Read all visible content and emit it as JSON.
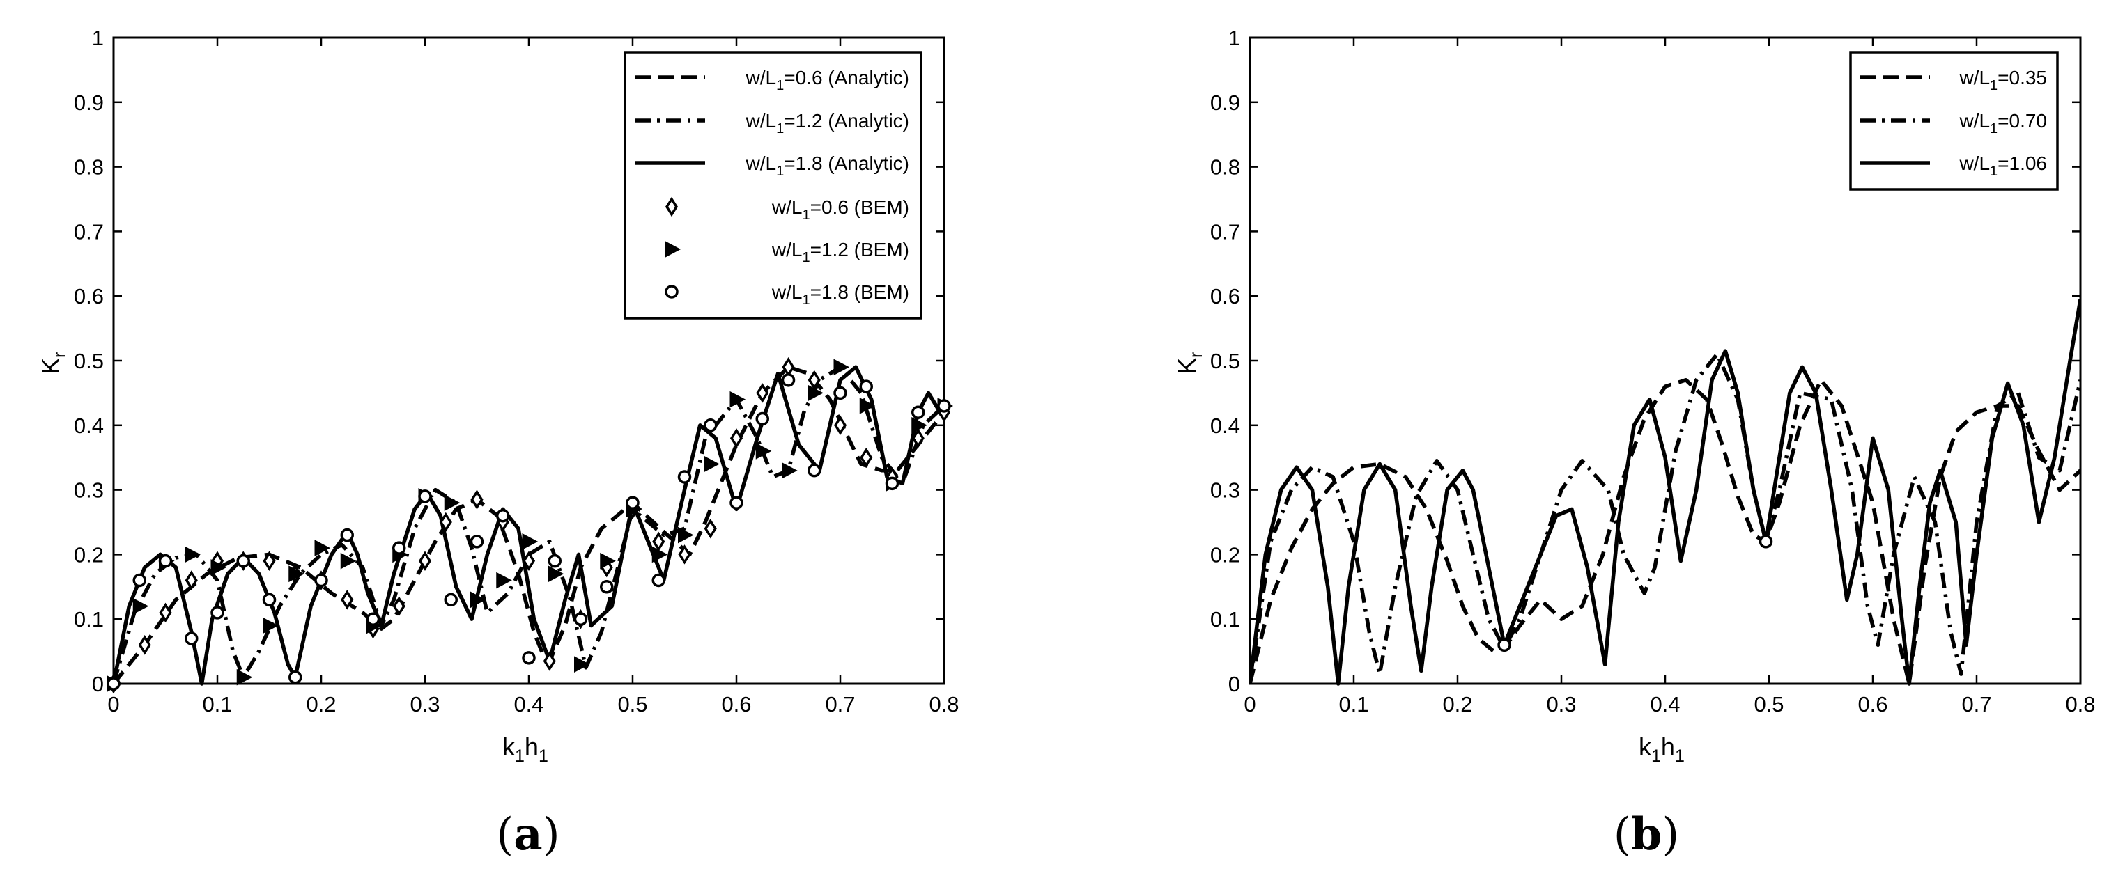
{
  "chart_data": [
    {
      "type": "line",
      "panel_label": "a",
      "xlabel": "k",
      "xlabel_sub1": "1",
      "xlabel_mid": "h",
      "xlabel_sub2": "1",
      "ylabel": "K",
      "ylabel_sub": "r",
      "xlim": [
        0,
        0.8
      ],
      "ylim": [
        0,
        1
      ],
      "xticks": [
        "0",
        "0.1",
        "0.2",
        "0.3",
        "0.4",
        "0.5",
        "0.6",
        "0.7",
        "0.8"
      ],
      "yticks": [
        "0",
        "0.1",
        "0.2",
        "0.3",
        "0.4",
        "0.5",
        "0.6",
        "0.7",
        "0.8",
        "0.9",
        "1"
      ],
      "grid": false,
      "legend_position": "top-right",
      "series": [
        {
          "name": "w/L1=0.6 (Analytic)",
          "label_pre": "w/L",
          "label_sub": "1",
          "label_post": "=0.6 (Analytic)",
          "style": "dashed",
          "x": [
            0,
            0.03,
            0.06,
            0.09,
            0.12,
            0.15,
            0.18,
            0.21,
            0.225,
            0.24,
            0.258,
            0.27,
            0.29,
            0.31,
            0.33,
            0.35,
            0.37,
            0.39,
            0.405,
            0.415,
            0.42,
            0.435,
            0.45,
            0.47,
            0.5,
            0.53,
            0.555,
            0.57,
            0.6,
            0.625,
            0.65,
            0.67,
            0.69,
            0.705,
            0.72,
            0.74,
            0.755,
            0.77,
            0.8
          ],
          "y": [
            0,
            0.06,
            0.13,
            0.17,
            0.195,
            0.2,
            0.18,
            0.14,
            0.125,
            0.11,
            0.085,
            0.1,
            0.16,
            0.22,
            0.27,
            0.285,
            0.26,
            0.17,
            0.08,
            0.04,
            0.035,
            0.09,
            0.18,
            0.24,
            0.28,
            0.235,
            0.2,
            0.25,
            0.37,
            0.45,
            0.49,
            0.48,
            0.44,
            0.39,
            0.34,
            0.33,
            0.33,
            0.36,
            0.42
          ]
        },
        {
          "name": "w/L1=1.2 (Analytic)",
          "label_pre": "w/L",
          "label_sub": "1",
          "label_post": "=1.2 (Analytic)",
          "style": "dashdot",
          "x": [
            0,
            0.02,
            0.04,
            0.06,
            0.08,
            0.1,
            0.115,
            0.125,
            0.14,
            0.16,
            0.18,
            0.2,
            0.22,
            0.24,
            0.258,
            0.27,
            0.29,
            0.31,
            0.33,
            0.345,
            0.36,
            0.38,
            0.4,
            0.42,
            0.44,
            0.455,
            0.47,
            0.5,
            0.53,
            0.55,
            0.57,
            0.6,
            0.62,
            0.635,
            0.65,
            0.665,
            0.68,
            0.7,
            0.72,
            0.74,
            0.76,
            0.78,
            0.8
          ],
          "y": [
            0,
            0.11,
            0.17,
            0.195,
            0.2,
            0.16,
            0.05,
            0.01,
            0.05,
            0.12,
            0.17,
            0.2,
            0.215,
            0.18,
            0.09,
            0.13,
            0.24,
            0.3,
            0.28,
            0.21,
            0.11,
            0.14,
            0.2,
            0.22,
            0.13,
            0.025,
            0.08,
            0.27,
            0.23,
            0.24,
            0.38,
            0.44,
            0.38,
            0.32,
            0.33,
            0.42,
            0.47,
            0.49,
            0.45,
            0.35,
            0.31,
            0.4,
            0.43
          ]
        },
        {
          "name": "w/L1=1.8 (Analytic)",
          "label_pre": "w/L",
          "label_sub": "1",
          "label_post": "=1.8 (Analytic)",
          "style": "solid",
          "x": [
            0,
            0.015,
            0.03,
            0.045,
            0.06,
            0.075,
            0.085,
            0.095,
            0.11,
            0.125,
            0.14,
            0.155,
            0.168,
            0.175,
            0.19,
            0.21,
            0.225,
            0.235,
            0.245,
            0.258,
            0.27,
            0.29,
            0.302,
            0.315,
            0.33,
            0.345,
            0.36,
            0.375,
            0.39,
            0.405,
            0.42,
            0.435,
            0.448,
            0.46,
            0.48,
            0.5,
            0.515,
            0.53,
            0.55,
            0.565,
            0.58,
            0.6,
            0.62,
            0.64,
            0.66,
            0.68,
            0.7,
            0.715,
            0.73,
            0.745,
            0.76,
            0.775,
            0.785,
            0.8
          ],
          "y": [
            0,
            0.12,
            0.18,
            0.2,
            0.18,
            0.08,
            0,
            0.1,
            0.17,
            0.195,
            0.17,
            0.11,
            0.03,
            0.01,
            0.12,
            0.2,
            0.235,
            0.2,
            0.14,
            0.09,
            0.17,
            0.27,
            0.295,
            0.26,
            0.15,
            0.1,
            0.2,
            0.27,
            0.24,
            0.1,
            0.035,
            0.13,
            0.2,
            0.09,
            0.12,
            0.28,
            0.22,
            0.16,
            0.3,
            0.4,
            0.38,
            0.27,
            0.38,
            0.48,
            0.37,
            0.33,
            0.47,
            0.49,
            0.44,
            0.32,
            0.31,
            0.42,
            0.45,
            0.41
          ]
        },
        {
          "name": "w/L1=0.6 (BEM)",
          "label_pre": "w/L",
          "label_sub": "1",
          "label_post": "=0.6 (BEM)",
          "marker": "diamond",
          "x": [
            0,
            0.03,
            0.05,
            0.075,
            0.1,
            0.125,
            0.15,
            0.175,
            0.2,
            0.225,
            0.25,
            0.275,
            0.3,
            0.32,
            0.35,
            0.375,
            0.4,
            0.42,
            0.45,
            0.475,
            0.5,
            0.525,
            0.55,
            0.575,
            0.6,
            0.625,
            0.65,
            0.675,
            0.7,
            0.725,
            0.75,
            0.775,
            0.8
          ],
          "y": [
            0,
            0.06,
            0.11,
            0.16,
            0.19,
            0.19,
            0.19,
            0.17,
            0.16,
            0.13,
            0.085,
            0.12,
            0.19,
            0.25,
            0.285,
            0.25,
            0.19,
            0.035,
            0.1,
            0.18,
            0.27,
            0.22,
            0.2,
            0.24,
            0.38,
            0.45,
            0.49,
            0.47,
            0.4,
            0.35,
            0.32,
            0.38,
            0.42
          ]
        },
        {
          "name": "w/L1=1.2 (BEM)",
          "label_pre": "w/L",
          "label_sub": "1",
          "label_post": "=1.2 (BEM)",
          "marker": "triangle",
          "x": [
            0,
            0.025,
            0.05,
            0.075,
            0.1,
            0.125,
            0.15,
            0.175,
            0.2,
            0.225,
            0.25,
            0.275,
            0.3,
            0.325,
            0.35,
            0.375,
            0.4,
            0.425,
            0.45,
            0.475,
            0.5,
            0.525,
            0.55,
            0.575,
            0.6,
            0.625,
            0.65,
            0.675,
            0.7,
            0.725,
            0.75,
            0.775,
            0.8
          ],
          "y": [
            0,
            0.12,
            0.19,
            0.2,
            0.18,
            0.01,
            0.09,
            0.17,
            0.21,
            0.19,
            0.09,
            0.2,
            0.29,
            0.28,
            0.13,
            0.16,
            0.22,
            0.17,
            0.03,
            0.19,
            0.27,
            0.2,
            0.23,
            0.34,
            0.44,
            0.36,
            0.33,
            0.45,
            0.49,
            0.43,
            0.31,
            0.4,
            0.43
          ]
        },
        {
          "name": "w/L1=1.8 (BEM)",
          "label_pre": "w/L",
          "label_sub": "1",
          "label_post": "=1.8 (BEM)",
          "marker": "circle",
          "x": [
            0,
            0.025,
            0.05,
            0.075,
            0.1,
            0.125,
            0.15,
            0.175,
            0.2,
            0.225,
            0.25,
            0.275,
            0.3,
            0.325,
            0.35,
            0.375,
            0.4,
            0.425,
            0.45,
            0.475,
            0.5,
            0.525,
            0.55,
            0.575,
            0.6,
            0.625,
            0.65,
            0.675,
            0.7,
            0.725,
            0.75,
            0.775,
            0.8
          ],
          "y": [
            0,
            0.16,
            0.19,
            0.07,
            0.11,
            0.19,
            0.13,
            0.01,
            0.16,
            0.23,
            0.1,
            0.21,
            0.29,
            0.13,
            0.22,
            0.26,
            0.04,
            0.19,
            0.1,
            0.15,
            0.28,
            0.16,
            0.32,
            0.4,
            0.28,
            0.41,
            0.47,
            0.33,
            0.45,
            0.46,
            0.31,
            0.42,
            0.43
          ]
        }
      ]
    },
    {
      "type": "line",
      "panel_label": "b",
      "xlabel": "k",
      "xlabel_sub1": "1",
      "xlabel_mid": "h",
      "xlabel_sub2": "1",
      "ylabel": "K",
      "ylabel_sub": "r",
      "xlim": [
        0,
        0.8
      ],
      "ylim": [
        0,
        1
      ],
      "xticks": [
        "0",
        "0.1",
        "0.2",
        "0.3",
        "0.4",
        "0.5",
        "0.6",
        "0.7",
        "0.8"
      ],
      "yticks": [
        "0",
        "0.1",
        "0.2",
        "0.3",
        "0.4",
        "0.5",
        "0.6",
        "0.7",
        "0.8",
        "0.9",
        "1"
      ],
      "grid": false,
      "legend_position": "top-right",
      "series": [
        {
          "name": "w/L1=0.35",
          "label_pre": "w/L",
          "label_sub": "1",
          "label_post": "=0.35",
          "style": "dashed",
          "x": [
            0,
            0.02,
            0.04,
            0.06,
            0.08,
            0.1,
            0.125,
            0.15,
            0.17,
            0.19,
            0.205,
            0.22,
            0.235,
            0.245,
            0.26,
            0.28,
            0.3,
            0.32,
            0.34,
            0.36,
            0.38,
            0.4,
            0.42,
            0.44,
            0.455,
            0.47,
            0.485,
            0.497,
            0.51,
            0.53,
            0.55,
            0.57,
            0.6,
            0.62,
            0.635,
            0.65,
            0.665,
            0.68,
            0.7,
            0.72,
            0.74,
            0.76,
            0.78,
            0.8
          ],
          "y": [
            0,
            0.13,
            0.21,
            0.27,
            0.31,
            0.335,
            0.34,
            0.32,
            0.27,
            0.19,
            0.12,
            0.07,
            0.05,
            0.055,
            0.09,
            0.13,
            0.1,
            0.12,
            0.2,
            0.32,
            0.41,
            0.46,
            0.47,
            0.44,
            0.37,
            0.29,
            0.23,
            0.22,
            0.28,
            0.4,
            0.47,
            0.43,
            0.28,
            0.1,
            0,
            0.18,
            0.32,
            0.39,
            0.42,
            0.43,
            0.43,
            0.36,
            0.3,
            0.33
          ]
        },
        {
          "name": "w/L1=0.70",
          "label_pre": "w/L",
          "label_sub": "1",
          "label_post": "=0.70",
          "style": "dashdot",
          "x": [
            0,
            0.02,
            0.04,
            0.06,
            0.08,
            0.1,
            0.115,
            0.125,
            0.14,
            0.16,
            0.18,
            0.2,
            0.215,
            0.23,
            0.245,
            0.26,
            0.28,
            0.3,
            0.32,
            0.345,
            0.36,
            0.38,
            0.39,
            0.41,
            0.43,
            0.45,
            0.47,
            0.485,
            0.497,
            0.51,
            0.53,
            0.56,
            0.58,
            0.595,
            0.605,
            0.62,
            0.64,
            0.66,
            0.675,
            0.685,
            0.7,
            0.72,
            0.74,
            0.76,
            0.78,
            0.8
          ],
          "y": [
            0,
            0.22,
            0.3,
            0.335,
            0.32,
            0.22,
            0.08,
            0.015,
            0.15,
            0.29,
            0.345,
            0.3,
            0.2,
            0.1,
            0.055,
            0.1,
            0.2,
            0.3,
            0.345,
            0.3,
            0.2,
            0.14,
            0.18,
            0.36,
            0.47,
            0.51,
            0.44,
            0.3,
            0.22,
            0.3,
            0.45,
            0.44,
            0.3,
            0.12,
            0.06,
            0.2,
            0.32,
            0.25,
            0.08,
            0.015,
            0.25,
            0.43,
            0.45,
            0.35,
            0.33,
            0.47
          ]
        },
        {
          "name": "w/L1=1.06",
          "label_pre": "w/L",
          "label_sub": "1",
          "label_post": "=1.06",
          "style": "solid",
          "marker_points": "circle",
          "x": [
            0,
            0.015,
            0.03,
            0.045,
            0.06,
            0.075,
            0.085,
            0.095,
            0.11,
            0.125,
            0.14,
            0.155,
            0.165,
            0.175,
            0.19,
            0.205,
            0.215,
            0.23,
            0.245,
            0.26,
            0.28,
            0.295,
            0.31,
            0.325,
            0.342,
            0.355,
            0.37,
            0.385,
            0.4,
            0.415,
            0.43,
            0.445,
            0.458,
            0.47,
            0.485,
            0.497,
            0.51,
            0.52,
            0.532,
            0.545,
            0.56,
            0.575,
            0.585,
            0.6,
            0.615,
            0.628,
            0.635,
            0.645,
            0.655,
            0.665,
            0.68,
            0.69,
            0.7,
            0.715,
            0.73,
            0.745,
            0.76,
            0.775,
            0.79,
            0.8
          ],
          "y": [
            0,
            0.2,
            0.3,
            0.335,
            0.3,
            0.15,
            0,
            0.15,
            0.3,
            0.34,
            0.3,
            0.12,
            0.02,
            0.15,
            0.3,
            0.33,
            0.3,
            0.18,
            0.06,
            0.12,
            0.2,
            0.26,
            0.27,
            0.18,
            0.03,
            0.25,
            0.4,
            0.44,
            0.35,
            0.19,
            0.3,
            0.47,
            0.515,
            0.45,
            0.3,
            0.22,
            0.35,
            0.45,
            0.49,
            0.45,
            0.3,
            0.13,
            0.2,
            0.38,
            0.3,
            0.1,
            0,
            0.15,
            0.28,
            0.33,
            0.25,
            0.06,
            0.2,
            0.38,
            0.465,
            0.4,
            0.25,
            0.35,
            0.5,
            0.595
          ]
        }
      ]
    }
  ]
}
